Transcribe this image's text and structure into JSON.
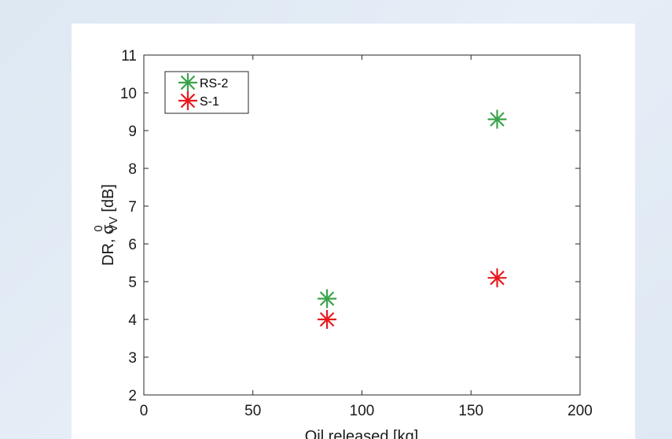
{
  "chart_data": {
    "type": "scatter",
    "title": "",
    "xlabel": "Oil released [kg]",
    "ylabel": {
      "main": "DR, σ",
      "superscript": "0",
      "subscript": "VV",
      "unit": " [dB]"
    },
    "xlim": [
      0,
      200
    ],
    "ylim": [
      2,
      11
    ],
    "xticks": [
      0,
      50,
      100,
      150,
      200
    ],
    "yticks": [
      2,
      3,
      4,
      5,
      6,
      7,
      8,
      9,
      10,
      11
    ],
    "grid": false,
    "legend_position": "top-left",
    "marker": "asterisk",
    "series": [
      {
        "name": "RS-2",
        "color": "#3aa34a",
        "points": [
          {
            "x": 84,
            "y": 4.55
          },
          {
            "x": 162,
            "y": 9.3
          }
        ]
      },
      {
        "name": "S-1",
        "color": "#e8191e",
        "points": [
          {
            "x": 84,
            "y": 4.0
          },
          {
            "x": 162,
            "y": 5.1
          }
        ]
      }
    ]
  }
}
